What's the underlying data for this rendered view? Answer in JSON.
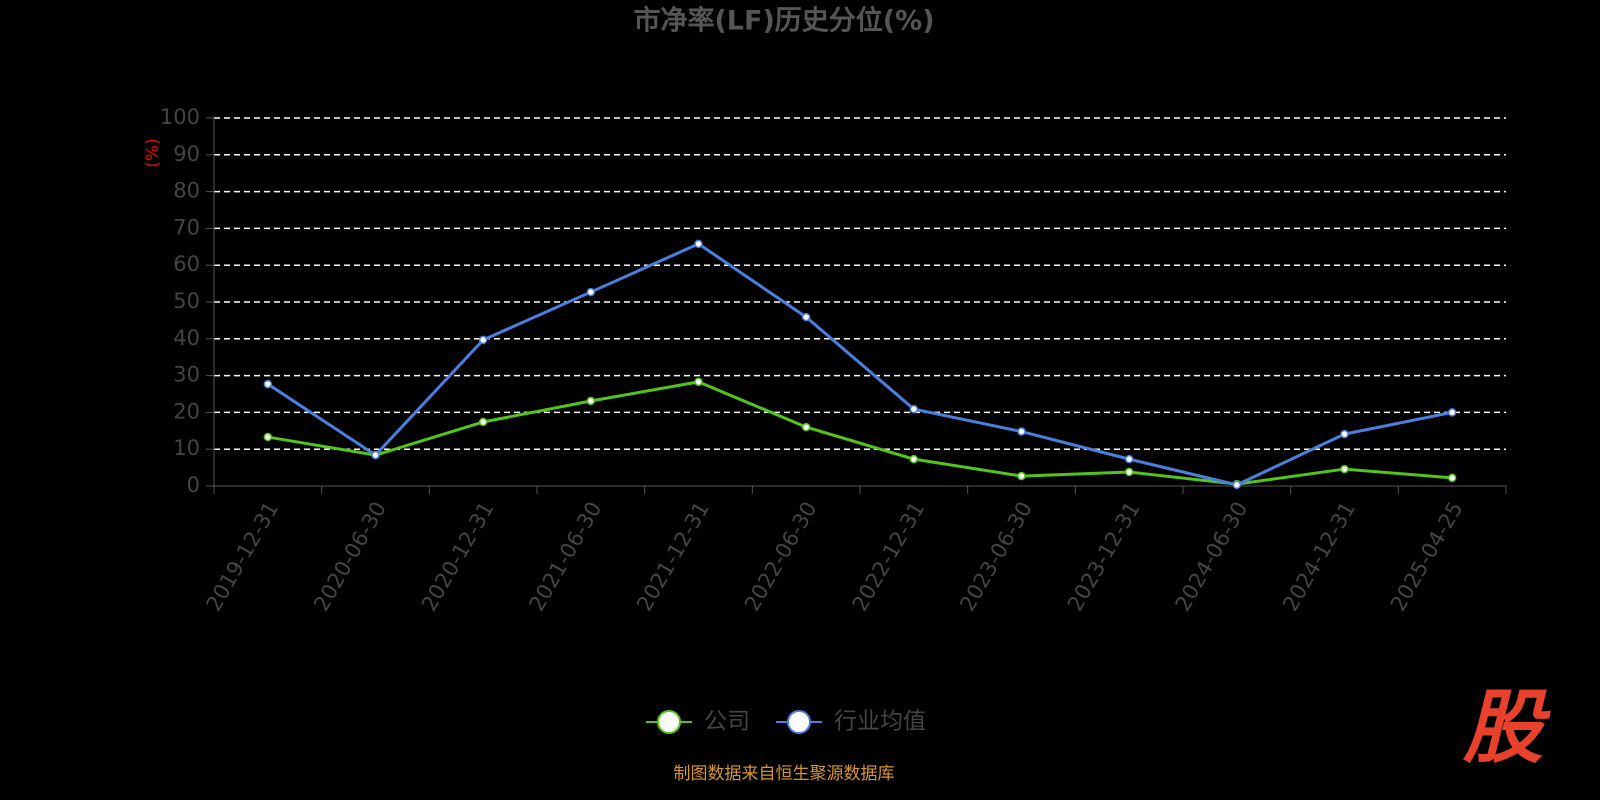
{
  "chart_data": {
    "type": "line",
    "title": "市净率(LF)历史分位(%)",
    "y_label": "(%)",
    "categories": [
      "2019-12-31",
      "2020-06-30",
      "2020-12-31",
      "2021-06-30",
      "2021-12-31",
      "2022-06-30",
      "2022-12-31",
      "2023-06-30",
      "2023-12-31",
      "2024-06-30",
      "2024-12-31",
      "2025-04-25"
    ],
    "series": [
      {
        "name": "公司",
        "color": "#52c41a",
        "values": [
          13.3,
          8.4,
          17.4,
          23.1,
          28.3,
          16.0,
          7.3,
          2.7,
          3.8,
          0.5,
          4.6,
          2.2
        ]
      },
      {
        "name": "行业均值",
        "color": "#4a7fe0",
        "values": [
          27.7,
          8.4,
          39.7,
          52.7,
          65.8,
          45.9,
          20.9,
          14.8,
          7.3,
          0.3,
          14.1,
          20.0
        ]
      }
    ],
    "ylim": [
      0,
      100
    ],
    "yticks": [
      0,
      10,
      20,
      30,
      40,
      50,
      60,
      70,
      80,
      90,
      100
    ],
    "grid": true,
    "source": "制图数据来自恒生聚源数据库",
    "logo": "股"
  }
}
